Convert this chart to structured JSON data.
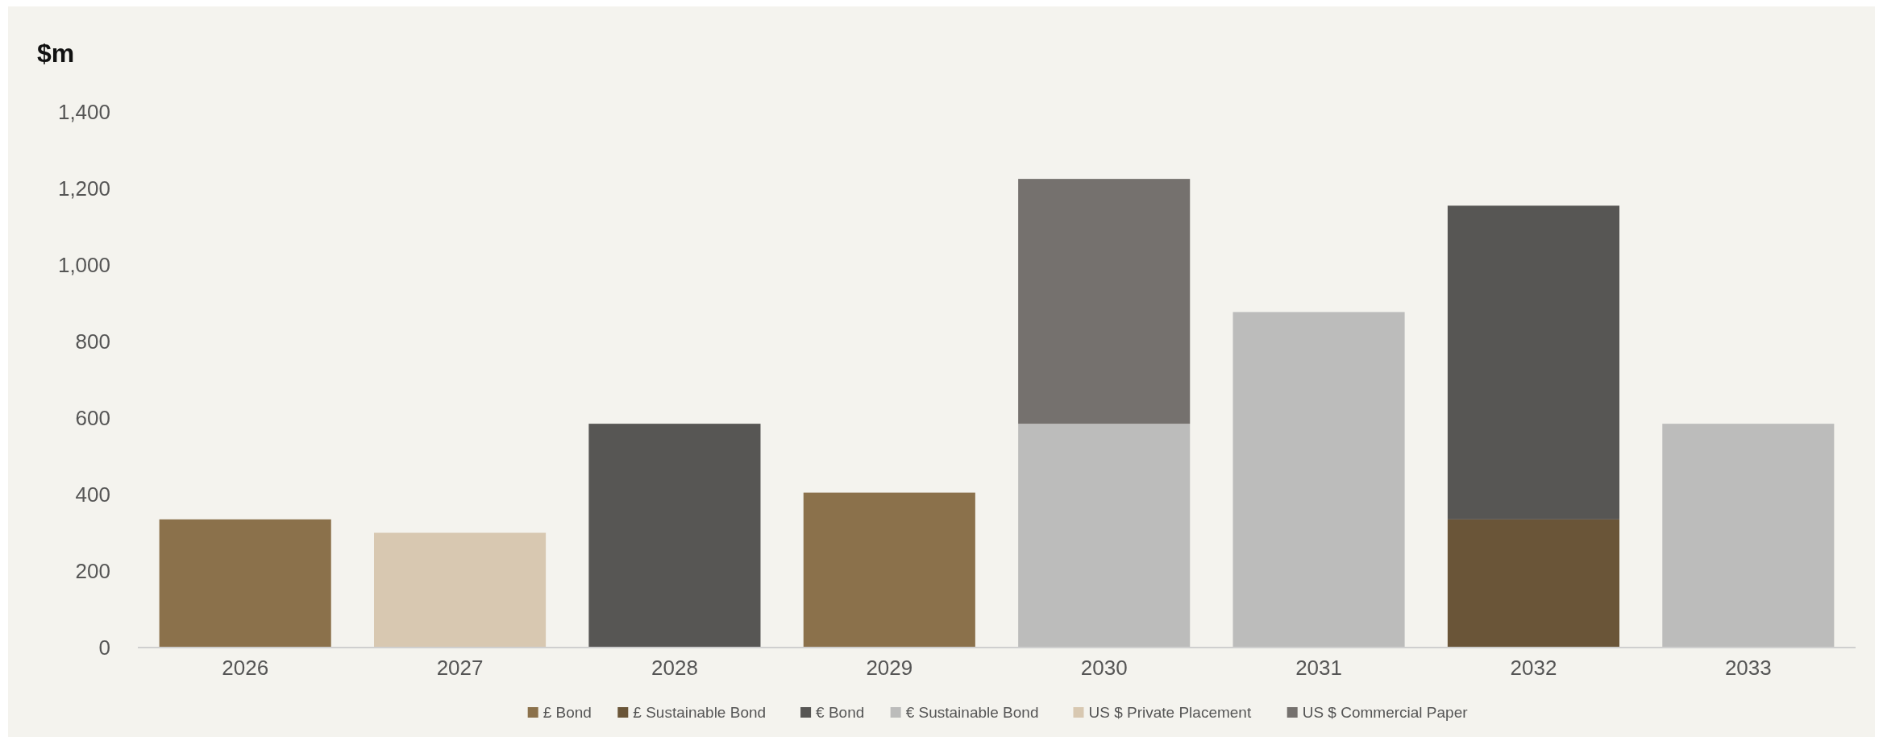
{
  "chart_data": {
    "type": "bar",
    "stacked": true,
    "ylabel": "$m",
    "categories": [
      "2026",
      "2027",
      "2028",
      "2029",
      "2030",
      "2031",
      "2032",
      "2033"
    ],
    "ylim": [
      0,
      1400
    ],
    "yticks": [
      0,
      {
        "value": 200,
        "label": "200"
      },
      {
        "value": 400,
        "label": "400"
      },
      {
        "value": 600,
        "label": "600"
      },
      {
        "value": 800,
        "label": "800"
      },
      {
        "value": 1000,
        "label": "1,000"
      },
      {
        "value": 1200,
        "label": "1,200"
      },
      {
        "value": 1400,
        "label": "1,400"
      }
    ],
    "grid": false,
    "legend": "bottom",
    "series": [
      {
        "name": "£ Bond",
        "color": "#8b714b",
        "values": [
          335,
          null,
          null,
          405,
          null,
          null,
          null,
          null
        ]
      },
      {
        "name": "£ Sustainable Bond",
        "color": "#6a5538",
        "values": [
          null,
          null,
          null,
          null,
          null,
          null,
          335,
          null
        ]
      },
      {
        "name": "€ Bond",
        "color": "#575654",
        "values": [
          null,
          null,
          585,
          null,
          null,
          null,
          820,
          null
        ]
      },
      {
        "name": "€ Sustainable Bond",
        "color": "#bcbcbb",
        "values": [
          null,
          null,
          null,
          null,
          585,
          877,
          null,
          585
        ]
      },
      {
        "name": "US $ Private Placement",
        "color": "#d8c8b1",
        "values": [
          null,
          300,
          null,
          null,
          null,
          null,
          null,
          null
        ]
      },
      {
        "name": "US $ Commercial Paper",
        "color": "#75716e",
        "values": [
          null,
          null,
          null,
          null,
          640,
          null,
          null,
          null
        ]
      }
    ]
  }
}
